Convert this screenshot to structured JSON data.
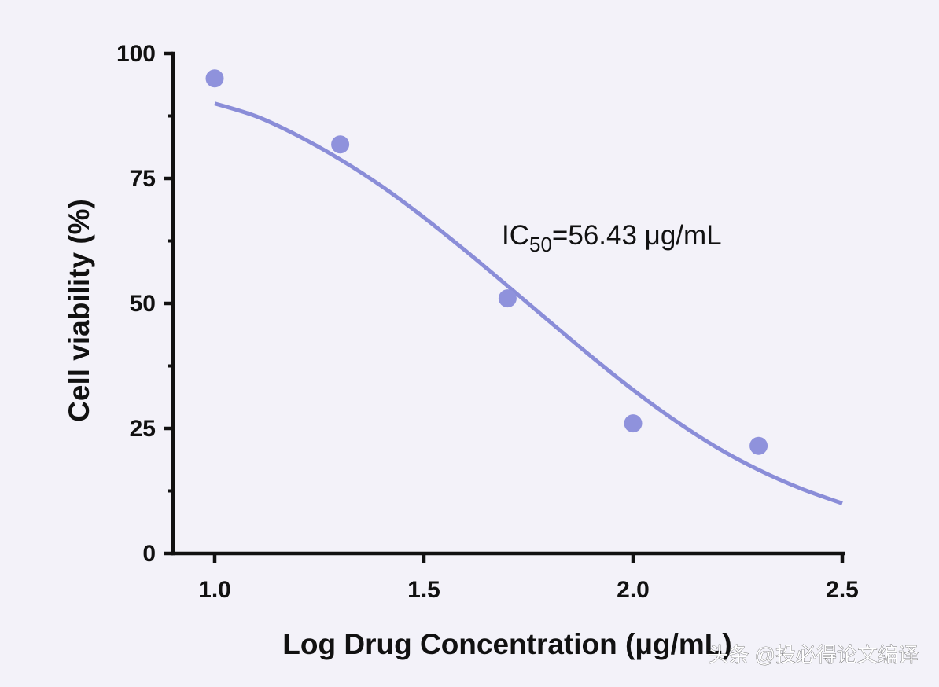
{
  "chart_data": {
    "type": "scatter",
    "title": "",
    "xlabel": "Log Drug Concentration (μg/mL)",
    "ylabel": "Cell viability (%)",
    "xlim": [
      0.9,
      2.5
    ],
    "ylim": [
      0,
      100
    ],
    "x_ticks": [
      1.0,
      1.5,
      2.0,
      2.5
    ],
    "x_tick_labels": [
      "1.0",
      "1.5",
      "2.0",
      "2.5"
    ],
    "y_ticks": [
      0,
      25,
      50,
      75,
      100
    ],
    "y_tick_labels": [
      "0",
      "25",
      "50",
      "75",
      "100"
    ],
    "y_minor_ticks": [
      12.5,
      37.5,
      62.5,
      87.5
    ],
    "grid": false,
    "series": [
      {
        "type": "scatter",
        "x": [
          1.0,
          1.3,
          1.7,
          2.0,
          2.3
        ],
        "y": [
          95.0,
          81.8,
          51.0,
          26.0,
          21.5
        ]
      },
      {
        "type": "line",
        "x": [
          1.0,
          1.1,
          1.2,
          1.3,
          1.4,
          1.5,
          1.6,
          1.7,
          1.8,
          1.9,
          2.0,
          2.1,
          2.2,
          2.3,
          2.4,
          2.5
        ],
        "y": [
          90.0,
          87.4,
          83.5,
          78.8,
          73.4,
          67.2,
          60.5,
          53.5,
          46.4,
          39.4,
          32.7,
          26.6,
          21.2,
          16.7,
          13.0,
          10.0
        ]
      }
    ],
    "annotation": {
      "prefix": "IC",
      "subscript": "50",
      "suffix": "=56.43 μg/mL"
    },
    "colors": {
      "marker": "#8f92dc",
      "curve": "#8a8dd8",
      "axis": "#111111",
      "background": "#f3f2f9"
    }
  },
  "watermark": "头条 @投必得论文编译"
}
